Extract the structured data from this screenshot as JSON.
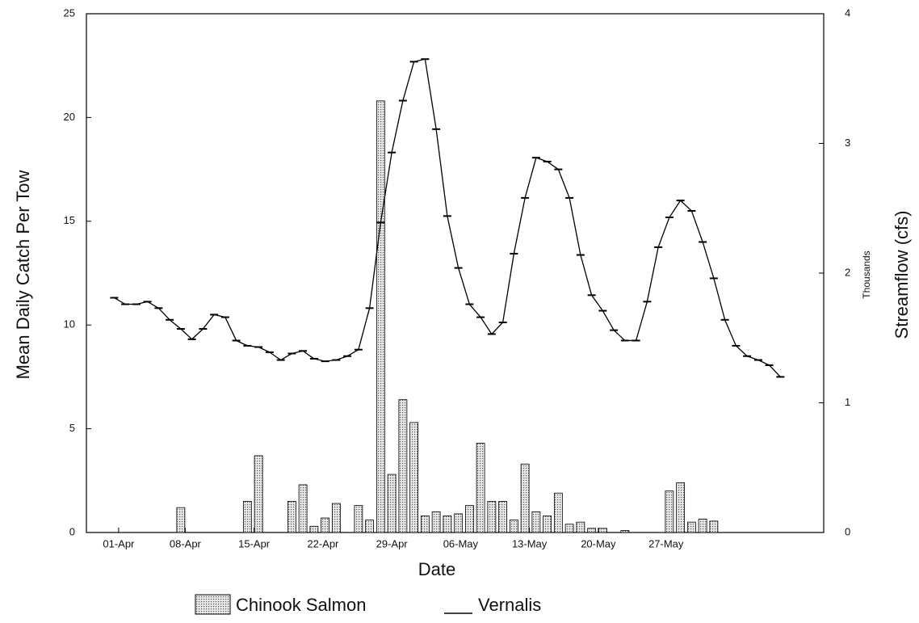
{
  "chart_data": {
    "type": "bar-line",
    "x_label": "Date",
    "y_label": "Mean Daily Catch Per Tow",
    "y2_label": "Streamflow (cfs)",
    "y2_unit_note": "Thousands",
    "x": [
      0,
      1,
      2,
      3,
      4,
      5,
      6,
      7,
      8,
      9,
      10,
      11,
      12,
      13,
      14,
      15,
      16,
      17,
      18,
      19,
      20,
      21,
      22,
      23,
      24,
      25,
      26,
      27,
      28,
      29,
      30,
      31,
      32,
      33,
      34,
      35,
      36,
      37,
      38,
      39,
      40,
      41,
      42,
      43,
      44,
      45,
      46,
      47,
      48,
      49,
      50,
      51,
      52,
      53,
      54,
      55,
      56,
      57,
      58,
      59,
      60
    ],
    "xlim": [
      -2.5,
      63.9
    ],
    "xticks": [
      {
        "value": 0.4,
        "label": "01-Apr"
      },
      {
        "value": 6.4,
        "label": "08-Apr"
      },
      {
        "value": 12.6,
        "label": "15-Apr"
      },
      {
        "value": 18.8,
        "label": "22-Apr"
      },
      {
        "value": 25,
        "label": "29-Apr"
      },
      {
        "value": 31.2,
        "label": "06-May"
      },
      {
        "value": 37.4,
        "label": "13-May"
      },
      {
        "value": 43.6,
        "label": "20-May"
      },
      {
        "value": 49.7,
        "label": "27-May"
      }
    ],
    "ylim": [
      0,
      25
    ],
    "yticks": [
      0,
      5,
      10,
      15,
      20,
      25
    ],
    "y2lim": [
      0,
      4
    ],
    "y2ticks": [
      0,
      1,
      2,
      3,
      4
    ],
    "series": [
      {
        "name": "Chinook Salmon",
        "kind": "bar",
        "color": "#bbbbbb",
        "values": [
          0,
          0,
          0,
          0,
          0,
          0,
          1.2,
          0,
          0,
          0,
          0,
          0,
          1.5,
          3.7,
          0,
          0,
          1.5,
          2.3,
          0.3,
          0.7,
          1.4,
          0,
          1.3,
          0.6,
          20.8,
          2.8,
          6.4,
          5.3,
          0.8,
          1.0,
          0.8,
          0.9,
          1.3,
          4.3,
          1.5,
          1.5,
          0.6,
          3.3,
          1.0,
          0.8,
          1.9,
          0.4,
          0.5,
          0.2,
          0.2,
          0,
          0.1,
          0,
          0,
          0,
          2.0,
          2.4,
          0.5,
          0.65,
          0.55,
          0,
          0,
          0,
          0,
          0,
          0
        ]
      },
      {
        "name": "Vernalis",
        "kind": "line",
        "axis": "y2",
        "color": "#000000",
        "values": [
          1.81,
          1.76,
          1.76,
          1.78,
          1.73,
          1.64,
          1.57,
          1.49,
          1.57,
          1.68,
          1.66,
          1.48,
          1.44,
          1.43,
          1.39,
          1.33,
          1.38,
          1.4,
          1.34,
          1.32,
          1.33,
          1.36,
          1.41,
          1.73,
          2.39,
          2.93,
          3.33,
          3.63,
          3.65,
          3.11,
          2.44,
          2.04,
          1.76,
          1.66,
          1.53,
          1.62,
          2.15,
          2.58,
          2.89,
          2.86,
          2.8,
          2.58,
          2.14,
          1.83,
          1.71,
          1.56,
          1.48,
          1.48,
          1.78,
          2.2,
          2.43,
          2.56,
          2.48,
          2.24,
          1.96,
          1.64,
          1.44,
          1.36,
          1.33,
          1.29,
          1.2
        ]
      }
    ]
  }
}
